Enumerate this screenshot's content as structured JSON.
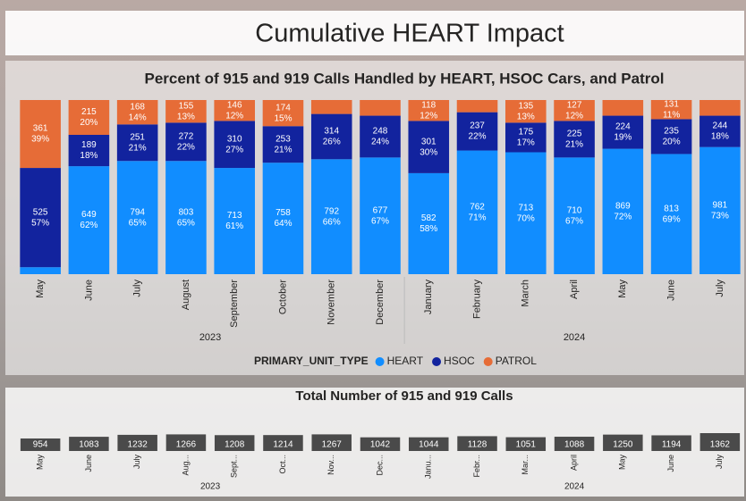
{
  "page_title": "Cumulative HEART Impact",
  "chart_data": [
    {
      "type": "stacked_bar_percent",
      "title": "Percent of 915 and 919 Calls Handled by HEART, HSOC Cars, and Patrol",
      "categories": [
        "May",
        "June",
        "July",
        "August",
        "September",
        "October",
        "November",
        "December",
        "January",
        "February",
        "March",
        "April",
        "May",
        "June",
        "July"
      ],
      "years": [
        "2023",
        "2023",
        "2023",
        "2023",
        "2023",
        "2023",
        "2023",
        "2023",
        "2024",
        "2024",
        "2024",
        "2024",
        "2024",
        "2024",
        "2024"
      ],
      "ylim": [
        0,
        100
      ],
      "legend_title": "PRIMARY_UNIT_TYPE",
      "series": [
        {
          "name": "HEART",
          "color": "#118dff",
          "values": [
            4,
            62,
            65,
            65,
            61,
            64,
            66,
            67,
            58,
            71,
            70,
            67,
            72,
            69,
            73
          ],
          "value_labels": [
            null,
            "62%",
            "65%",
            "65%",
            "61%",
            "64%",
            "66%",
            "67%",
            "58%",
            "71%",
            "70%",
            "67%",
            "72%",
            "69%",
            "73%"
          ],
          "counts": [
            null,
            649,
            794,
            803,
            713,
            758,
            792,
            677,
            582,
            762,
            713,
            710,
            869,
            813,
            981
          ]
        },
        {
          "name": "HSOC",
          "color": "#12239e",
          "values": [
            57,
            18,
            21,
            22,
            27,
            21,
            26,
            24,
            30,
            22,
            17,
            21,
            19,
            20,
            18
          ],
          "value_labels": [
            "57%",
            "18%",
            "21%",
            "22%",
            "27%",
            "21%",
            "26%",
            "24%",
            "30%",
            "22%",
            "17%",
            "21%",
            "19%",
            "20%",
            "18%"
          ],
          "counts": [
            525,
            189,
            251,
            272,
            310,
            253,
            314,
            248,
            301,
            237,
            175,
            225,
            224,
            235,
            244
          ]
        },
        {
          "name": "PATROL",
          "color": "#e66c37",
          "values": [
            39,
            20,
            14,
            13,
            12,
            15,
            8,
            9,
            12,
            7,
            13,
            12,
            9,
            11,
            9
          ],
          "value_labels": [
            "39%",
            "20%",
            "14%",
            "13%",
            "12%",
            "15%",
            null,
            null,
            "12%",
            null,
            "13%",
            "12%",
            null,
            "11%",
            null
          ],
          "counts": [
            361,
            215,
            168,
            155,
            146,
            174,
            null,
            null,
            118,
            null,
            135,
            127,
            null,
            131,
            null
          ]
        }
      ]
    },
    {
      "type": "bar",
      "title": "Total Number of 915 and 919 Calls",
      "categories": [
        "May",
        "June",
        "July",
        "Aug...",
        "Sept...",
        "Oct...",
        "Nov...",
        "Dec...",
        "Janu...",
        "Febr...",
        "Mar...",
        "April",
        "May",
        "June",
        "July"
      ],
      "years": [
        "2023",
        "2023",
        "2023",
        "2023",
        "2023",
        "2023",
        "2023",
        "2023",
        "2024",
        "2024",
        "2024",
        "2024",
        "2024",
        "2024",
        "2024"
      ],
      "color": "#4a4a4a",
      "values": [
        954,
        1083,
        1232,
        1266,
        1208,
        1214,
        1267,
        1042,
        1044,
        1128,
        1051,
        1088,
        1250,
        1194,
        1362
      ]
    }
  ]
}
